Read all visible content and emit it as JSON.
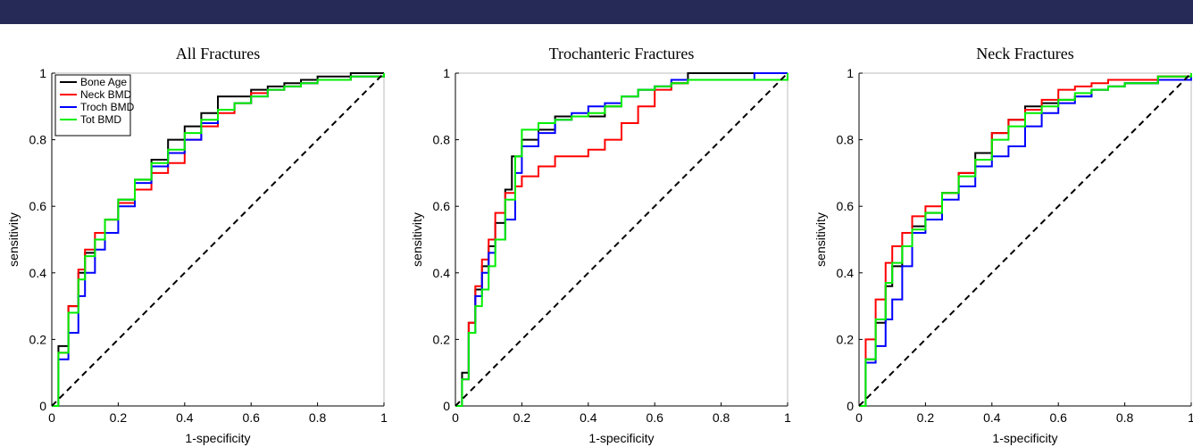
{
  "colors": {
    "banner": "#252b56",
    "bone_age": "#000000",
    "neck_bmd": "#ff0000",
    "troch_bmd": "#0000ff",
    "tot_bmd": "#00ee00",
    "chance": "#000000"
  },
  "chart_data": [
    {
      "type": "line",
      "title": "All Fractures",
      "xlabel": "1-specificity",
      "ylabel": "sensitivity",
      "xlim": [
        0,
        1
      ],
      "ylim": [
        0,
        1
      ],
      "xticks": [
        "0",
        "0.2",
        "0.4",
        "0.6",
        "0.8",
        "1"
      ],
      "yticks": [
        "0",
        "0.2",
        "0.4",
        "0.6",
        "0.8",
        "1"
      ],
      "legend": {
        "placement": "top-left"
      },
      "series": [
        {
          "name": "Bone Age",
          "color": "#000000",
          "x": [
            0,
            0.02,
            0.05,
            0.08,
            0.1,
            0.13,
            0.16,
            0.2,
            0.25,
            0.3,
            0.35,
            0.4,
            0.45,
            0.5,
            0.55,
            0.6,
            0.65,
            0.7,
            0.75,
            0.8,
            0.9,
            1
          ],
          "y": [
            0,
            0.18,
            0.3,
            0.4,
            0.46,
            0.5,
            0.56,
            0.62,
            0.68,
            0.74,
            0.8,
            0.84,
            0.88,
            0.93,
            0.93,
            0.95,
            0.96,
            0.97,
            0.98,
            0.99,
            1,
            1
          ]
        },
        {
          "name": "Neck BMD",
          "color": "#ff0000",
          "x": [
            0,
            0.02,
            0.05,
            0.08,
            0.1,
            0.13,
            0.16,
            0.2,
            0.25,
            0.3,
            0.35,
            0.4,
            0.45,
            0.5,
            0.55,
            0.6,
            0.65,
            0.7,
            0.75,
            0.8,
            0.9,
            1
          ],
          "y": [
            0,
            0.16,
            0.3,
            0.41,
            0.47,
            0.52,
            0.56,
            0.61,
            0.65,
            0.7,
            0.73,
            0.8,
            0.84,
            0.88,
            0.91,
            0.94,
            0.95,
            0.96,
            0.97,
            0.98,
            0.99,
            1
          ]
        },
        {
          "name": "Troch BMD",
          "color": "#0000ff",
          "x": [
            0,
            0.02,
            0.05,
            0.08,
            0.1,
            0.13,
            0.16,
            0.2,
            0.25,
            0.3,
            0.35,
            0.4,
            0.45,
            0.5,
            0.55,
            0.6,
            0.65,
            0.7,
            0.75,
            0.8,
            0.9,
            1
          ],
          "y": [
            0,
            0.14,
            0.22,
            0.33,
            0.4,
            0.47,
            0.52,
            0.6,
            0.67,
            0.72,
            0.76,
            0.8,
            0.85,
            0.89,
            0.91,
            0.93,
            0.95,
            0.96,
            0.97,
            0.98,
            0.99,
            1
          ]
        },
        {
          "name": "Tot BMD",
          "color": "#00ee00",
          "x": [
            0,
            0.02,
            0.05,
            0.08,
            0.1,
            0.13,
            0.16,
            0.2,
            0.25,
            0.3,
            0.35,
            0.4,
            0.45,
            0.5,
            0.55,
            0.6,
            0.65,
            0.7,
            0.75,
            0.8,
            0.9,
            1
          ],
          "y": [
            0,
            0.16,
            0.28,
            0.38,
            0.45,
            0.5,
            0.56,
            0.62,
            0.68,
            0.73,
            0.77,
            0.82,
            0.86,
            0.89,
            0.91,
            0.93,
            0.95,
            0.96,
            0.97,
            0.98,
            0.99,
            1
          ]
        },
        {
          "name": "",
          "color": "#000000",
          "dashed": true,
          "x": [
            0,
            1
          ],
          "y": [
            0,
            1
          ]
        }
      ]
    },
    {
      "type": "line",
      "title": "Trochanteric Fractures",
      "xlabel": "1-specificity",
      "ylabel": "sensitivity",
      "xlim": [
        0,
        1
      ],
      "ylim": [
        0,
        1
      ],
      "xticks": [
        "0",
        "0.2",
        "0.4",
        "0.6",
        "0.8",
        "1"
      ],
      "yticks": [
        "0",
        "0.2",
        "0.4",
        "0.6",
        "0.8",
        "1"
      ],
      "series": [
        {
          "name": "Bone Age",
          "color": "#000000",
          "x": [
            0,
            0.02,
            0.04,
            0.06,
            0.08,
            0.1,
            0.12,
            0.15,
            0.17,
            0.2,
            0.25,
            0.3,
            0.4,
            0.45,
            0.5,
            0.55,
            0.6,
            0.65,
            0.7,
            0.75,
            0.9,
            1
          ],
          "y": [
            0,
            0.1,
            0.25,
            0.35,
            0.42,
            0.48,
            0.55,
            0.65,
            0.75,
            0.8,
            0.83,
            0.87,
            0.87,
            0.9,
            0.93,
            0.95,
            0.96,
            0.97,
            1,
            1,
            1,
            1
          ]
        },
        {
          "name": "Neck BMD",
          "color": "#ff0000",
          "x": [
            0,
            0.02,
            0.04,
            0.06,
            0.08,
            0.1,
            0.12,
            0.15,
            0.18,
            0.2,
            0.25,
            0.3,
            0.35,
            0.4,
            0.45,
            0.5,
            0.55,
            0.6,
            0.65,
            0.7,
            0.8,
            1
          ],
          "y": [
            0,
            0.08,
            0.25,
            0.36,
            0.44,
            0.5,
            0.58,
            0.64,
            0.66,
            0.69,
            0.72,
            0.75,
            0.75,
            0.77,
            0.8,
            0.85,
            0.9,
            0.95,
            0.97,
            0.98,
            0.98,
            1
          ]
        },
        {
          "name": "Troch BMD",
          "color": "#0000ff",
          "x": [
            0,
            0.02,
            0.04,
            0.06,
            0.08,
            0.1,
            0.12,
            0.15,
            0.18,
            0.2,
            0.25,
            0.3,
            0.35,
            0.4,
            0.45,
            0.5,
            0.55,
            0.6,
            0.65,
            0.7,
            0.8,
            0.9,
            1
          ],
          "y": [
            0,
            0.08,
            0.22,
            0.33,
            0.4,
            0.46,
            0.5,
            0.56,
            0.7,
            0.78,
            0.82,
            0.86,
            0.88,
            0.9,
            0.91,
            0.93,
            0.95,
            0.96,
            0.98,
            0.98,
            0.98,
            1,
            1
          ]
        },
        {
          "name": "Tot BMD",
          "color": "#00ee00",
          "x": [
            0,
            0.02,
            0.04,
            0.06,
            0.08,
            0.1,
            0.12,
            0.15,
            0.18,
            0.2,
            0.25,
            0.3,
            0.35,
            0.4,
            0.45,
            0.5,
            0.55,
            0.6,
            0.65,
            0.7,
            0.8,
            1
          ],
          "y": [
            0,
            0.08,
            0.22,
            0.3,
            0.35,
            0.42,
            0.5,
            0.62,
            0.75,
            0.83,
            0.85,
            0.86,
            0.87,
            0.88,
            0.9,
            0.93,
            0.95,
            0.96,
            0.97,
            0.98,
            0.98,
            1
          ]
        },
        {
          "name": "",
          "color": "#000000",
          "dashed": true,
          "x": [
            0,
            1
          ],
          "y": [
            0,
            1
          ]
        }
      ]
    },
    {
      "type": "line",
      "title": "Neck Fractures",
      "xlabel": "1-specificity",
      "ylabel": "sensitivity",
      "xlim": [
        0,
        1
      ],
      "ylim": [
        0,
        1
      ],
      "xticks": [
        "0",
        "0.2",
        "0.4",
        "0.6",
        "0.8",
        "1"
      ],
      "yticks": [
        "0",
        "0.2",
        "0.4",
        "0.6",
        "0.8",
        "1"
      ],
      "series": [
        {
          "name": "Bone Age",
          "color": "#000000",
          "x": [
            0,
            0.02,
            0.05,
            0.08,
            0.1,
            0.13,
            0.16,
            0.2,
            0.25,
            0.3,
            0.35,
            0.4,
            0.45,
            0.5,
            0.55,
            0.6,
            0.65,
            0.7,
            0.75,
            0.8,
            0.9,
            1
          ],
          "y": [
            0,
            0.14,
            0.25,
            0.36,
            0.42,
            0.48,
            0.54,
            0.58,
            0.64,
            0.7,
            0.76,
            0.82,
            0.86,
            0.9,
            0.91,
            0.92,
            0.93,
            0.95,
            0.96,
            0.97,
            0.99,
            1
          ]
        },
        {
          "name": "Neck BMD",
          "color": "#ff0000",
          "x": [
            0,
            0.02,
            0.05,
            0.08,
            0.1,
            0.13,
            0.16,
            0.2,
            0.25,
            0.3,
            0.35,
            0.4,
            0.45,
            0.5,
            0.55,
            0.6,
            0.65,
            0.7,
            0.75,
            0.8,
            0.9,
            1
          ],
          "y": [
            0,
            0.2,
            0.32,
            0.43,
            0.48,
            0.52,
            0.57,
            0.6,
            0.64,
            0.7,
            0.74,
            0.82,
            0.86,
            0.89,
            0.92,
            0.95,
            0.96,
            0.97,
            0.98,
            0.98,
            0.99,
            1
          ]
        },
        {
          "name": "Troch BMD",
          "color": "#0000ff",
          "x": [
            0,
            0.02,
            0.05,
            0.08,
            0.1,
            0.13,
            0.16,
            0.2,
            0.25,
            0.3,
            0.35,
            0.4,
            0.45,
            0.5,
            0.55,
            0.6,
            0.65,
            0.7,
            0.75,
            0.8,
            0.9,
            1
          ],
          "y": [
            0,
            0.13,
            0.18,
            0.26,
            0.32,
            0.42,
            0.52,
            0.56,
            0.62,
            0.66,
            0.72,
            0.75,
            0.78,
            0.84,
            0.88,
            0.91,
            0.93,
            0.95,
            0.96,
            0.97,
            0.98,
            1
          ]
        },
        {
          "name": "Tot BMD",
          "color": "#00ee00",
          "x": [
            0,
            0.02,
            0.05,
            0.08,
            0.1,
            0.13,
            0.16,
            0.2,
            0.25,
            0.3,
            0.35,
            0.4,
            0.45,
            0.5,
            0.55,
            0.6,
            0.65,
            0.7,
            0.75,
            0.8,
            0.9,
            1
          ],
          "y": [
            0,
            0.14,
            0.26,
            0.37,
            0.43,
            0.48,
            0.53,
            0.58,
            0.64,
            0.69,
            0.74,
            0.8,
            0.84,
            0.88,
            0.9,
            0.92,
            0.94,
            0.95,
            0.96,
            0.97,
            0.99,
            1
          ]
        },
        {
          "name": "",
          "color": "#000000",
          "dashed": true,
          "x": [
            0,
            1
          ],
          "y": [
            0,
            1
          ]
        }
      ]
    }
  ]
}
